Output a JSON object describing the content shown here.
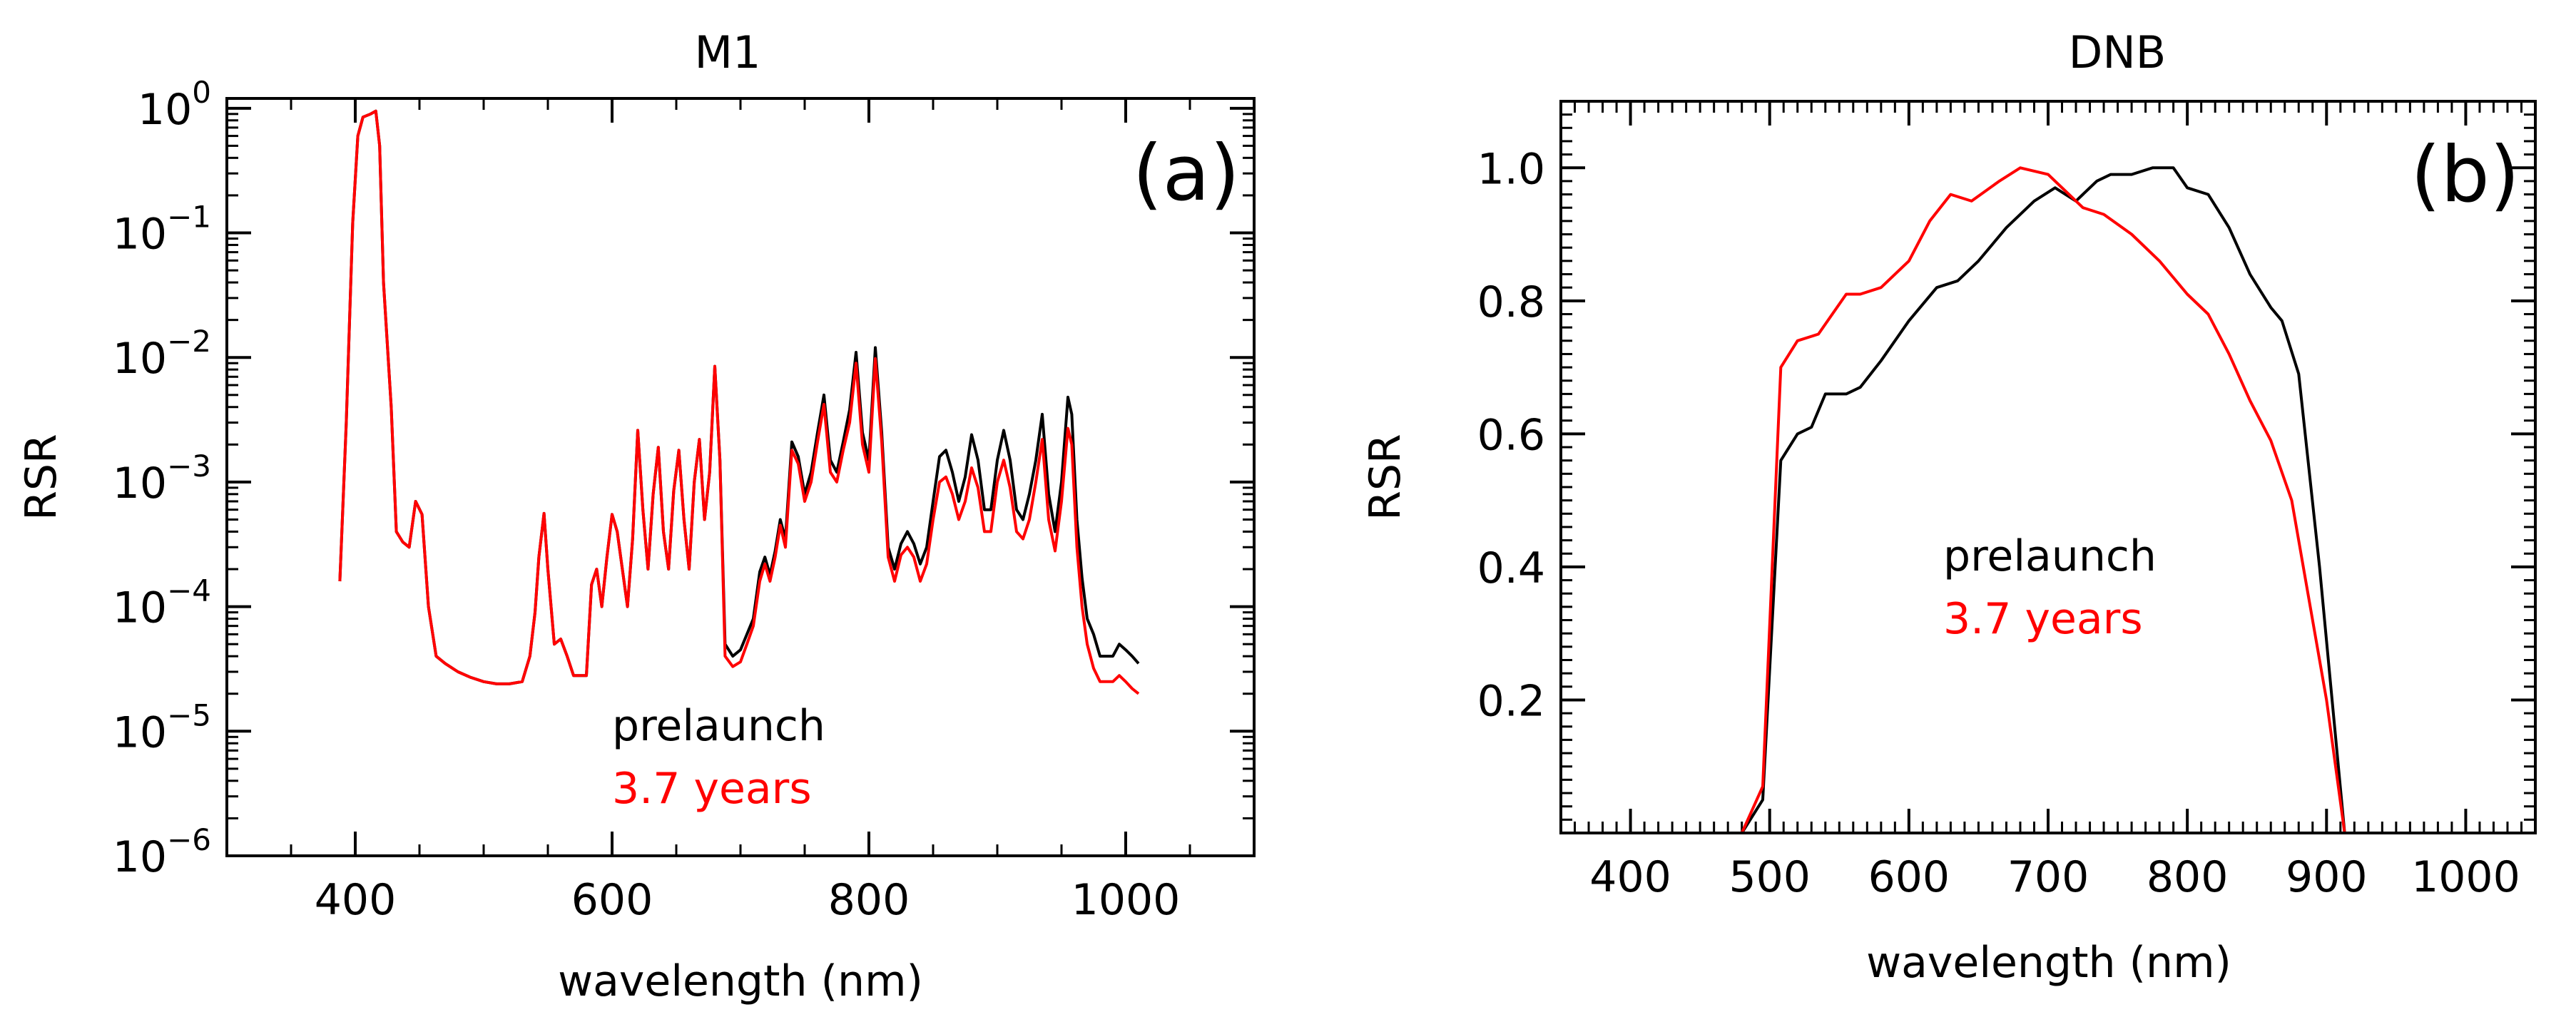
{
  "chart_data": [
    {
      "type": "line",
      "title": "M1",
      "panel_label": "(a)",
      "xlabel": "wavelength (nm)",
      "ylabel": "RSR",
      "yscale": "log",
      "xlim": [
        300,
        1100
      ],
      "ylim": [
        1e-06,
        1.2
      ],
      "x_ticks": [
        400,
        600,
        800,
        1000
      ],
      "x_tick_labels": [
        "400",
        "600",
        "800",
        "1000"
      ],
      "y_ticks": [
        1,
        0.1,
        0.01,
        0.001,
        0.0001,
        1e-05,
        1e-06
      ],
      "y_tick_labels": [
        {
          "base": "10",
          "exp": "0"
        },
        {
          "base": "10",
          "exp": "−1"
        },
        {
          "base": "10",
          "exp": "−2"
        },
        {
          "base": "10",
          "exp": "−3"
        },
        {
          "base": "10",
          "exp": "−4"
        },
        {
          "base": "10",
          "exp": "−5"
        },
        {
          "base": "10",
          "exp": "−6"
        }
      ],
      "legend": {
        "position": "bottom-center",
        "entries": [
          "prelaunch",
          "3.7 years"
        ]
      },
      "series": [
        {
          "name": "prelaunch",
          "color": "#000000",
          "x": [
            388,
            393,
            398,
            402,
            406,
            412,
            416,
            419,
            422,
            428,
            432,
            437,
            442,
            447,
            452,
            457,
            463,
            470,
            480,
            490,
            500,
            510,
            520,
            530,
            536,
            540,
            543,
            547,
            550,
            555,
            560,
            565,
            570,
            575,
            580,
            584,
            588,
            592,
            596,
            600,
            604,
            608,
            612,
            616,
            620,
            624,
            628,
            632,
            636,
            640,
            644,
            648,
            652,
            656,
            660,
            664,
            668,
            672,
            676,
            680,
            684,
            688,
            694,
            700,
            705,
            710,
            715,
            719,
            723,
            727,
            731,
            735,
            740,
            745,
            750,
            755,
            760,
            765,
            770,
            775,
            780,
            785,
            790,
            795,
            800,
            805,
            810,
            815,
            820,
            825,
            830,
            835,
            840,
            845,
            850,
            855,
            860,
            865,
            870,
            875,
            880,
            885,
            890,
            895,
            900,
            905,
            910,
            915,
            920,
            925,
            930,
            935,
            940,
            945,
            950,
            955,
            958,
            962,
            966,
            970,
            975,
            980,
            985,
            990,
            995,
            1000,
            1005,
            1010
          ],
          "values": [
            0.00016,
            0.003,
            0.12,
            0.6,
            0.85,
            0.9,
            0.95,
            0.5,
            0.04,
            0.004,
            0.0004,
            0.00033,
            0.0003,
            0.0007,
            0.00055,
            0.0001,
            4e-05,
            3.5e-05,
            3e-05,
            2.7e-05,
            2.5e-05,
            2.4e-05,
            2.4e-05,
            2.5e-05,
            4e-05,
            9e-05,
            0.00025,
            0.00056,
            0.0002,
            5e-05,
            5.5e-05,
            4e-05,
            2.8e-05,
            2.8e-05,
            2.8e-05,
            0.00015,
            0.0002,
            0.0001,
            0.00025,
            0.00055,
            0.0004,
            0.0002,
            0.0001,
            0.00035,
            0.0026,
            0.0006,
            0.0002,
            0.0008,
            0.0019,
            0.0004,
            0.0002,
            0.00085,
            0.0018,
            0.0005,
            0.0002,
            0.001,
            0.0022,
            0.0005,
            0.0012,
            0.0085,
            0.0015,
            5e-05,
            4e-05,
            4.5e-05,
            6e-05,
            8e-05,
            0.00019,
            0.00025,
            0.00018,
            0.00028,
            0.0005,
            0.00035,
            0.0021,
            0.0016,
            0.0008,
            0.0012,
            0.0025,
            0.005,
            0.0015,
            0.0012,
            0.0021,
            0.0038,
            0.011,
            0.0025,
            0.0015,
            0.012,
            0.0025,
            0.0003,
            0.0002,
            0.00032,
            0.0004,
            0.00032,
            0.00022,
            0.0003,
            0.0007,
            0.0016,
            0.0018,
            0.0012,
            0.0007,
            0.0011,
            0.0024,
            0.0015,
            0.0006,
            0.0006,
            0.0015,
            0.0026,
            0.0015,
            0.0006,
            0.0005,
            0.0008,
            0.0015,
            0.0035,
            0.0008,
            0.0004,
            0.001,
            0.0048,
            0.0035,
            0.0005,
            0.00017,
            8e-05,
            6e-05,
            4e-05,
            4e-05,
            4e-05,
            5e-05,
            4.5e-05,
            4e-05,
            3.5e-05
          ]
        },
        {
          "name": "3.7 years",
          "color": "#ff0000",
          "x": [
            388,
            393,
            398,
            402,
            406,
            412,
            416,
            419,
            422,
            428,
            432,
            437,
            442,
            447,
            452,
            457,
            463,
            470,
            480,
            490,
            500,
            510,
            520,
            530,
            536,
            540,
            543,
            547,
            550,
            555,
            560,
            565,
            570,
            575,
            580,
            584,
            588,
            592,
            596,
            600,
            604,
            608,
            612,
            616,
            620,
            624,
            628,
            632,
            636,
            640,
            644,
            648,
            652,
            656,
            660,
            664,
            668,
            672,
            676,
            680,
            684,
            688,
            694,
            700,
            705,
            710,
            715,
            719,
            723,
            727,
            731,
            735,
            740,
            745,
            750,
            755,
            760,
            765,
            770,
            775,
            780,
            785,
            790,
            795,
            800,
            805,
            810,
            815,
            820,
            825,
            830,
            835,
            840,
            845,
            850,
            855,
            860,
            865,
            870,
            875,
            880,
            885,
            890,
            895,
            900,
            905,
            910,
            915,
            920,
            925,
            930,
            935,
            940,
            945,
            950,
            955,
            958,
            962,
            966,
            970,
            975,
            980,
            985,
            990,
            995,
            1000,
            1005,
            1010
          ],
          "values": [
            0.00016,
            0.003,
            0.12,
            0.6,
            0.85,
            0.9,
            0.95,
            0.5,
            0.04,
            0.004,
            0.0004,
            0.00033,
            0.0003,
            0.0007,
            0.00055,
            0.0001,
            4e-05,
            3.5e-05,
            3e-05,
            2.7e-05,
            2.5e-05,
            2.4e-05,
            2.4e-05,
            2.5e-05,
            4e-05,
            9e-05,
            0.00025,
            0.00056,
            0.0002,
            5e-05,
            5.5e-05,
            4e-05,
            2.8e-05,
            2.8e-05,
            2.8e-05,
            0.00015,
            0.0002,
            0.0001,
            0.00025,
            0.00055,
            0.0004,
            0.0002,
            0.0001,
            0.00035,
            0.0026,
            0.0006,
            0.0002,
            0.0008,
            0.0019,
            0.0004,
            0.0002,
            0.00085,
            0.0018,
            0.0005,
            0.0002,
            0.001,
            0.0022,
            0.0005,
            0.0012,
            0.0085,
            0.0015,
            4e-05,
            3.3e-05,
            3.6e-05,
            5e-05,
            7e-05,
            0.00016,
            0.00022,
            0.00016,
            0.00025,
            0.00045,
            0.0003,
            0.0018,
            0.0014,
            0.0007,
            0.001,
            0.0021,
            0.0042,
            0.0012,
            0.001,
            0.0018,
            0.003,
            0.009,
            0.002,
            0.0012,
            0.0098,
            0.0021,
            0.00025,
            0.00016,
            0.00026,
            0.0003,
            0.00025,
            0.00016,
            0.00022,
            0.0005,
            0.001,
            0.0011,
            0.0008,
            0.0005,
            0.0007,
            0.0013,
            0.0009,
            0.0004,
            0.0004,
            0.001,
            0.0015,
            0.0009,
            0.0004,
            0.00035,
            0.0005,
            0.001,
            0.0022,
            0.0005,
            0.00028,
            0.0007,
            0.0027,
            0.002,
            0.0003,
            0.0001,
            5e-05,
            3.2e-05,
            2.5e-05,
            2.5e-05,
            2.5e-05,
            2.8e-05,
            2.5e-05,
            2.2e-05,
            2e-05
          ]
        }
      ]
    },
    {
      "type": "line",
      "title": "DNB",
      "panel_label": "(b)",
      "xlabel": "wavelength (nm)",
      "ylabel": "RSR",
      "yscale": "linear",
      "xlim": [
        350,
        1050
      ],
      "ylim": [
        0,
        1.1
      ],
      "x_ticks": [
        400,
        500,
        600,
        700,
        800,
        900,
        1000
      ],
      "x_tick_labels": [
        "400",
        "500",
        "600",
        "700",
        "800",
        "900",
        "1000"
      ],
      "y_ticks": [
        0.2,
        0.4,
        0.6,
        0.8,
        1.0
      ],
      "y_tick_labels": [
        "0.2",
        "0.4",
        "0.6",
        "0.8",
        "1.0"
      ],
      "legend": {
        "position": "center",
        "entries": [
          "prelaunch",
          "3.7 years"
        ]
      },
      "series": [
        {
          "name": "prelaunch",
          "color": "#000000",
          "x": [
            400,
            430,
            460,
            480,
            495,
            508,
            520,
            530,
            540,
            555,
            565,
            580,
            600,
            620,
            635,
            650,
            670,
            690,
            705,
            720,
            735,
            745,
            760,
            775,
            790,
            800,
            815,
            830,
            845,
            860,
            868,
            880,
            895,
            913,
            930,
            960,
            1000
          ],
          "values": [
            0,
            0,
            0,
            0.0,
            0.05,
            0.56,
            0.6,
            0.61,
            0.66,
            0.66,
            0.67,
            0.71,
            0.77,
            0.82,
            0.83,
            0.86,
            0.91,
            0.95,
            0.97,
            0.95,
            0.98,
            0.99,
            0.99,
            1.0,
            1.0,
            0.97,
            0.96,
            0.91,
            0.84,
            0.79,
            0.77,
            0.69,
            0.4,
            0.0,
            0,
            0,
            0
          ]
        },
        {
          "name": "3.7 years",
          "color": "#ff0000",
          "x": [
            400,
            430,
            460,
            480,
            495,
            508,
            520,
            535,
            545,
            555,
            565,
            580,
            600,
            615,
            630,
            645,
            665,
            680,
            700,
            715,
            725,
            740,
            760,
            780,
            800,
            815,
            830,
            845,
            860,
            875,
            885,
            900,
            913,
            930,
            960,
            1000
          ],
          "values": [
            0,
            0,
            0,
            0.0,
            0.07,
            0.7,
            0.74,
            0.75,
            0.78,
            0.81,
            0.81,
            0.82,
            0.86,
            0.92,
            0.96,
            0.95,
            0.98,
            1.0,
            0.99,
            0.96,
            0.94,
            0.93,
            0.9,
            0.86,
            0.81,
            0.78,
            0.72,
            0.65,
            0.59,
            0.5,
            0.38,
            0.2,
            0.0,
            0,
            0,
            0
          ]
        }
      ]
    }
  ]
}
